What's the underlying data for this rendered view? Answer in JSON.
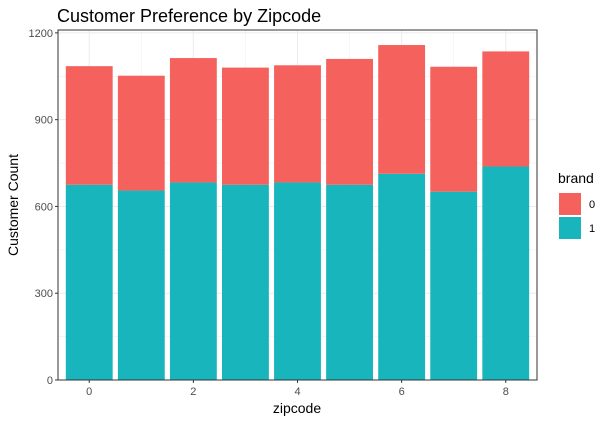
{
  "chart_data": {
    "type": "bar",
    "stacked": true,
    "title": "Customer Preference by Zipcode",
    "xlabel": "zipcode",
    "ylabel": "Customer Count",
    "x": [
      0,
      1,
      2,
      3,
      4,
      5,
      6,
      7,
      8
    ],
    "xticks": [
      0,
      2,
      4,
      6,
      8
    ],
    "xlim": [
      -0.6,
      8.6
    ],
    "ylim": [
      0,
      1210
    ],
    "yticks": [
      0,
      300,
      600,
      900,
      1200
    ],
    "grid": true,
    "legend": {
      "title": "brand",
      "position": "right"
    },
    "series": [
      {
        "name": "1",
        "color": "#19B5BC",
        "values": [
          675,
          655,
          683,
          675,
          683,
          675,
          713,
          651,
          738
        ]
      },
      {
        "name": "0",
        "color": "#F5625D",
        "values": [
          410,
          397,
          430,
          405,
          405,
          435,
          445,
          432,
          398
        ]
      }
    ],
    "legend_order": [
      "0",
      "1"
    ]
  }
}
